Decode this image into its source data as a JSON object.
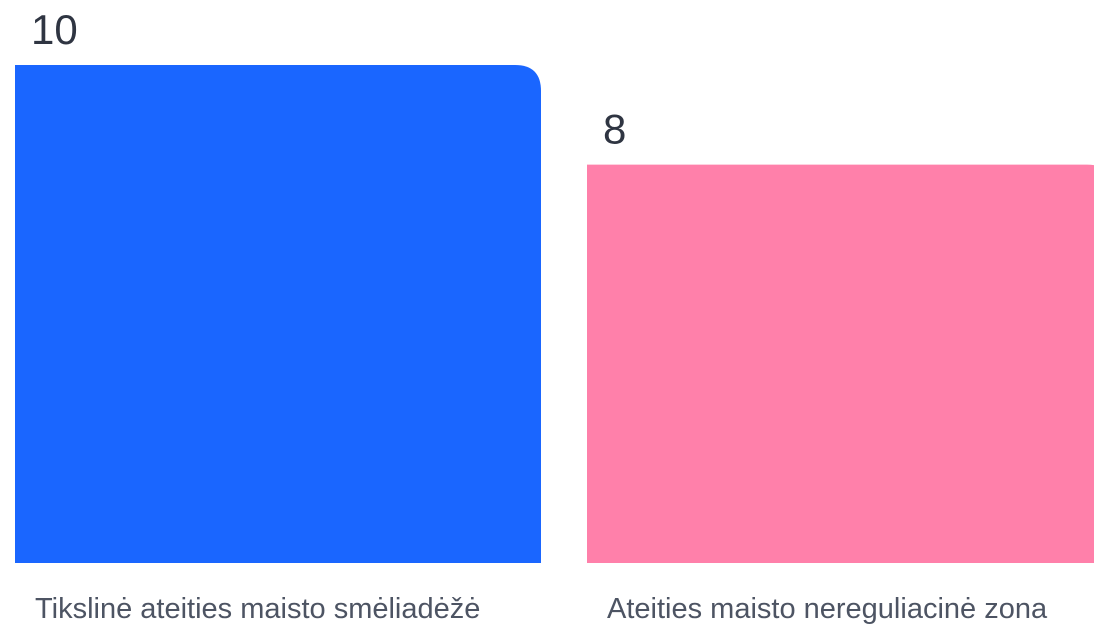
{
  "chart_data": {
    "type": "bar",
    "categories": [
      "Tikslinė ateities maisto smėliadėžė",
      "Ateities maisto nereguliacinė zona"
    ],
    "values": [
      10,
      8
    ],
    "data_labels": [
      "10",
      "8"
    ],
    "title": "",
    "xlabel": "",
    "ylabel": "",
    "ylim": [
      0,
      10
    ],
    "grid": false,
    "legend": "none",
    "colors": [
      "#1a66ff",
      "#ff80aa"
    ]
  }
}
